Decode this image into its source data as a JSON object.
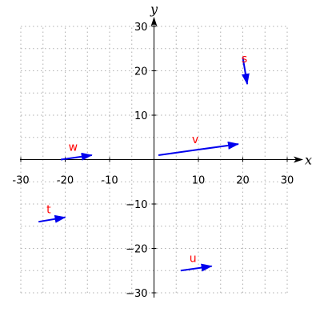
{
  "chart_data": {
    "type": "vector",
    "xlabel": "x",
    "ylabel": "y",
    "xlim": [
      -30,
      30
    ],
    "ylim": [
      -30,
      30
    ],
    "xticks": [
      -30,
      -20,
      -10,
      10,
      20,
      30
    ],
    "yticks": [
      -30,
      -20,
      -10,
      10,
      20,
      30
    ],
    "xtick_labels": [
      "-30",
      "-20",
      "-10",
      "10",
      "20",
      "30"
    ],
    "ytick_labels": [
      "−30",
      "−20",
      "−10",
      "10",
      "20",
      "30"
    ],
    "grid": true,
    "vectors": [
      {
        "name": "s",
        "x0": 20,
        "y0": 23,
        "x1": 21,
        "y1": 17
      },
      {
        "name": "v",
        "x0": 1,
        "y0": 1,
        "x1": 19,
        "y1": 3.5
      },
      {
        "name": "w",
        "x0": -21,
        "y0": 0,
        "x1": -14,
        "y1": 1
      },
      {
        "name": "t",
        "x0": -26,
        "y0": -14,
        "x1": -20,
        "y1": -13
      },
      {
        "name": "u",
        "x0": 6,
        "y0": -25,
        "x1": 13,
        "y1": -24
      }
    ]
  },
  "colors": {
    "vector": "#0000ee",
    "label": "#ff0000",
    "axis": "#000000",
    "grid": "#b0b0b0"
  }
}
